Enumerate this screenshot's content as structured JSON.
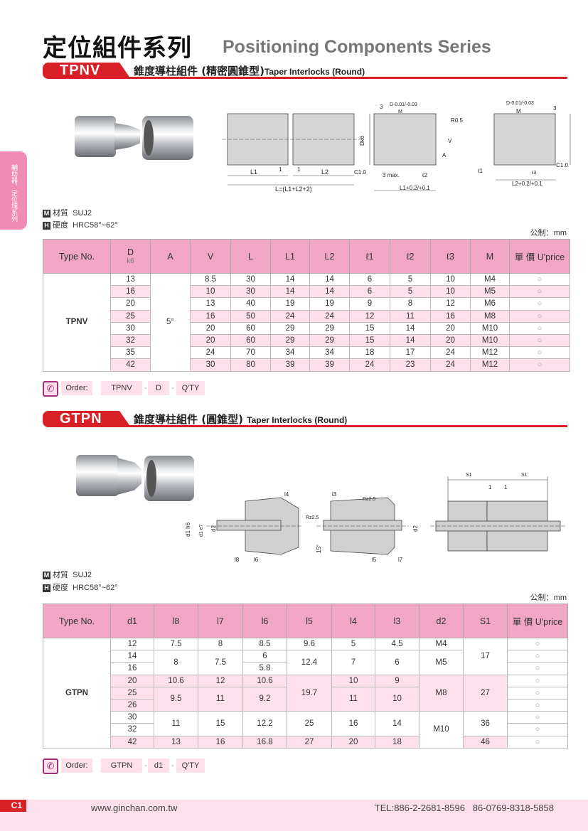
{
  "header": {
    "title_cn": "定位組件系列",
    "title_en": "Positioning Components Series"
  },
  "side_tab": "輔助器、定位塊系列",
  "colors": {
    "accent_red": "#d92027",
    "header_pink": "#f2a6c6",
    "row_pink": "#fde0ec"
  },
  "tpnv": {
    "code": "TPNV",
    "title_cn": "錐度導柱組件 (精密圓錐型)",
    "title_en": "Taper Interlocks (Round)",
    "drawing_labels": {
      "l1": "L1",
      "l2": "L2",
      "l_total": "L=(L1+L2+2)",
      "one_a": "1",
      "one_b": "1",
      "three": "3",
      "d_tol": "D-0.01/-0.03",
      "m": "M",
      "dk6": "Dk6",
      "c10": "C1.0",
      "three_max": "3 max.",
      "el2": "ℓ2",
      "l1_tol": "L1+0.2/+0.1",
      "r05": "R0.5",
      "v": "V",
      "a": "A",
      "el1": "ℓ1",
      "el3": "ℓ3",
      "l2_tol": "L2+0.2/+0.1"
    },
    "material": {
      "m_icon": "M",
      "m_label": "材質",
      "m_value": "SUJ2",
      "h_icon": "H",
      "h_label": "硬度",
      "h_value": "HRC58°~62°"
    },
    "unit": "公制：mm",
    "columns": [
      "Type No.",
      "D",
      "A",
      "V",
      "L",
      "L1",
      "L2",
      "ℓ1",
      "ℓ2",
      "ℓ3",
      "M",
      "單 價 U'price"
    ],
    "d_sub": "k6",
    "type_value": "TPNV",
    "a_value": "5°",
    "rows": [
      [
        "13",
        "8.5",
        "30",
        "14",
        "14",
        "6",
        "5",
        "10",
        "M4"
      ],
      [
        "16",
        "10",
        "30",
        "14",
        "14",
        "6",
        "5",
        "10",
        "M5"
      ],
      [
        "20",
        "13",
        "40",
        "19",
        "19",
        "9",
        "8",
        "12",
        "M6"
      ],
      [
        "25",
        "16",
        "50",
        "24",
        "24",
        "12",
        "11",
        "16",
        "M8"
      ],
      [
        "30",
        "20",
        "60",
        "29",
        "29",
        "15",
        "14",
        "20",
        "M10"
      ],
      [
        "32",
        "20",
        "60",
        "29",
        "29",
        "15",
        "14",
        "20",
        "M10"
      ],
      [
        "35",
        "24",
        "70",
        "34",
        "34",
        "18",
        "17",
        "24",
        "M12"
      ],
      [
        "42",
        "30",
        "80",
        "39",
        "39",
        "24",
        "23",
        "24",
        "M12"
      ]
    ],
    "price_mark": "○",
    "order": {
      "label": "Order:",
      "parts": [
        "TPNV",
        "D",
        "Q'TY"
      ],
      "sep": "-",
      "icon": "phone-icon"
    }
  },
  "gtpn": {
    "code": "GTPN",
    "title_cn": "錐度導柱組件 (圓錐型)",
    "title_en": "Taper Interlocks (Round)",
    "drawing_labels": {
      "l4": "l4",
      "l3": "l3",
      "rz_a": "Rz2.5",
      "rz_b": "Rz2.5",
      "d1h6": "d1 h6",
      "d1e7": "d1 e7",
      "d2a": "d2",
      "d2b": "d2",
      "l8": "l8",
      "l6": "l6",
      "l5": "l5",
      "l7": "l7",
      "deg": "15°",
      "s1a": "S1",
      "s1b": "S1",
      "one_a": "1",
      "one_b": "1"
    },
    "material": {
      "m_icon": "M",
      "m_label": "材質",
      "m_value": "SUJ2",
      "h_icon": "H",
      "h_label": "硬度",
      "h_value": "HRC58°~62°"
    },
    "unit": "公制：mm",
    "columns": [
      "Type No.",
      "d1",
      "l8",
      "l7",
      "l6",
      "l5",
      "l4",
      "l3",
      "d2",
      "S1",
      "單 價 U'price"
    ],
    "type_value": "GTPN",
    "rows": [
      [
        "12",
        "7.5",
        "8",
        "8.5",
        "9.6",
        "5",
        "4.5",
        "M4",
        "17"
      ],
      [
        "14",
        "8",
        "7.5",
        "6",
        "12.4",
        "7",
        "6",
        "M5",
        null
      ],
      [
        "16",
        null,
        null,
        "5.8",
        null,
        null,
        null,
        null,
        null
      ],
      [
        "20",
        "10.6",
        "12",
        "10.6",
        "19.7",
        "10",
        "9",
        "M8",
        "27"
      ],
      [
        "25",
        "9.5",
        "11",
        "9.2",
        null,
        "11",
        "10",
        null,
        null
      ],
      [
        "26",
        null,
        null,
        null,
        null,
        null,
        null,
        null,
        null
      ],
      [
        "30",
        "11",
        "15",
        "12.2",
        "25",
        "16",
        "14",
        "M10",
        "36"
      ],
      [
        "32",
        null,
        null,
        null,
        null,
        null,
        null,
        null,
        null
      ],
      [
        "42",
        "13",
        "16",
        "16.8",
        "27",
        "20",
        "18",
        null,
        "46"
      ]
    ],
    "price_mark": "○",
    "order": {
      "label": "Order:",
      "parts": [
        "GTPN",
        "d1",
        "Q'TY"
      ],
      "sep": "-",
      "icon": "phone-icon"
    }
  },
  "footer": {
    "page": "C1",
    "website": "www.ginchan.com.tw",
    "tel": "TEL:886-2-2681-8596   86-0769-8318-5858"
  }
}
